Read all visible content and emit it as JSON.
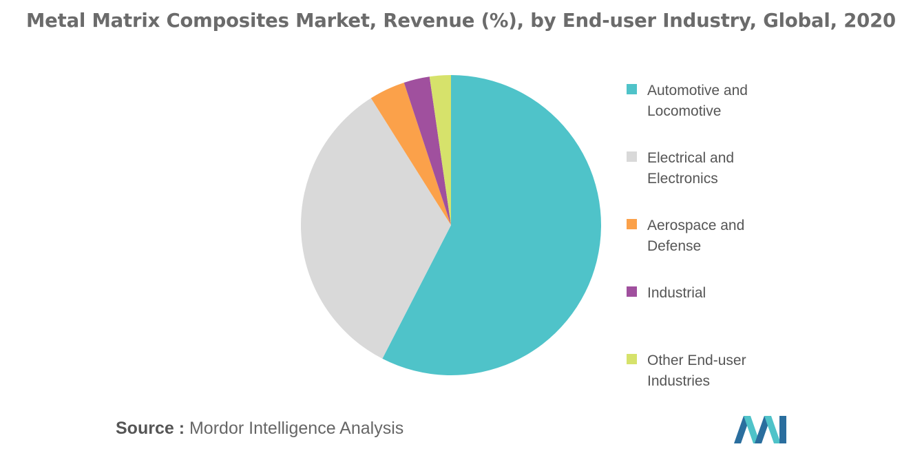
{
  "title": "Metal Matrix Composites Market, Revenue (%), by End-user Industry, Global, 2020",
  "source": {
    "label": "Source :",
    "text": "Mordor Intelligence Analysis"
  },
  "chart_data": {
    "type": "pie",
    "title": "Metal Matrix Composites Market, Revenue (%), by End-user Industry, Global, 2020",
    "legend_position": "right",
    "slices": [
      {
        "label": "Automotive and Locomotive",
        "value": 57.9,
        "color": "#4fc3c9"
      },
      {
        "label": "Electrical and Electronics",
        "value": 33.7,
        "color": "#d9d9d9"
      },
      {
        "label": "Aerospace and Defense",
        "value": 3.9,
        "color": "#fba14a"
      },
      {
        "label": "Industrial",
        "value": 2.8,
        "color": "#a0509e"
      },
      {
        "label": "Other End-user Industries",
        "value": 2.3,
        "color": "#d6e26b"
      }
    ]
  },
  "logo": {
    "icon": "mordor-intelligence-logo-icon",
    "colors": [
      "#2a6e9e",
      "#4fc3c9"
    ]
  }
}
